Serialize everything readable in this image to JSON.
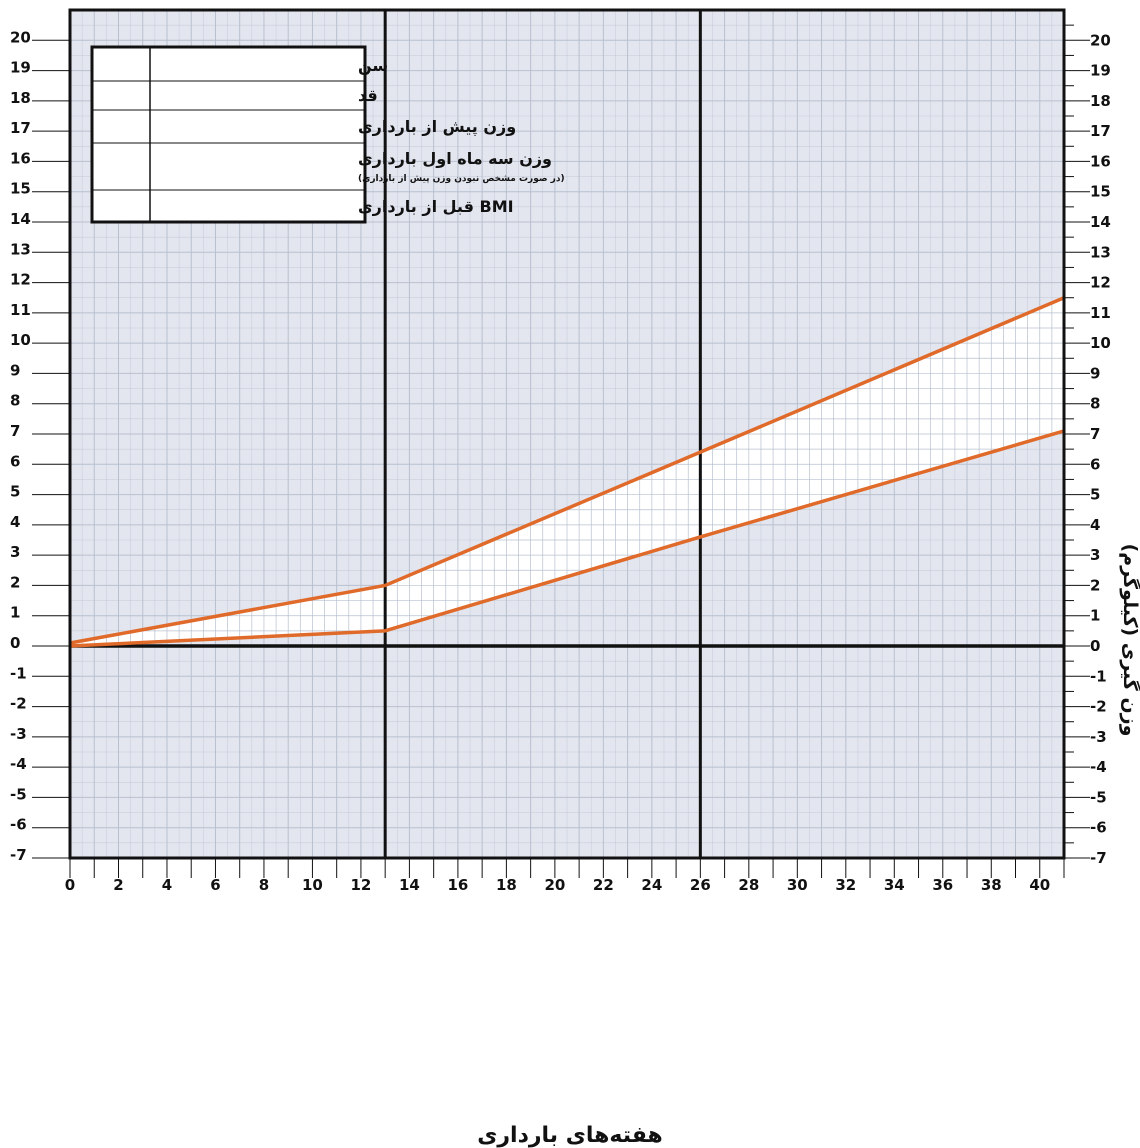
{
  "chart_data": {
    "type": "line",
    "title": "",
    "xlabel": "هفته‌های بارداری",
    "ylabel": "وزن گیری (کیلوگرم)",
    "xlim": [
      0,
      41
    ],
    "ylim": [
      -7,
      21
    ],
    "x_tick_labels": [
      "0",
      "2",
      "4",
      "6",
      "8",
      "10",
      "12",
      "14",
      "16",
      "18",
      "20",
      "22",
      "24",
      "26",
      "28",
      "30",
      "32",
      "34",
      "36",
      "38",
      "40"
    ],
    "y_tick_labels": [
      "-7",
      "-6",
      "-5",
      "-4",
      "-3",
      "-2",
      "-1",
      "0",
      "1",
      "2",
      "3",
      "4",
      "5",
      "6",
      "7",
      "8",
      "9",
      "10",
      "11",
      "12",
      "13",
      "14",
      "15",
      "16",
      "17",
      "18",
      "19",
      "20"
    ],
    "grid": true,
    "vertical_markers": [
      13,
      26
    ],
    "series": [
      {
        "x": [
          0,
          13,
          26,
          41
        ],
        "values": [
          0.1,
          2.0,
          6.4,
          11.5
        ]
      },
      {
        "x": [
          0,
          13,
          26,
          41
        ],
        "values": [
          0.0,
          0.5,
          3.6,
          7.1
        ]
      }
    ],
    "colors": {
      "line": "#e06a2a",
      "shaded_background": "#e3e6ef",
      "grid": "#b8c0cf",
      "axis": "#111111"
    }
  },
  "info_table": {
    "rows": [
      {
        "label": "سن",
        "value": ""
      },
      {
        "label": "قد",
        "value": ""
      },
      {
        "label": "وزن پیش از بارداری",
        "value": ""
      },
      {
        "label": "وزن سه ماه اول بارداری",
        "sublabel": "(در صورت مشخص نبودن وزن پیش از بارداری)",
        "value": ""
      },
      {
        "label": "BMI قبل از بارداری",
        "value": ""
      }
    ]
  }
}
